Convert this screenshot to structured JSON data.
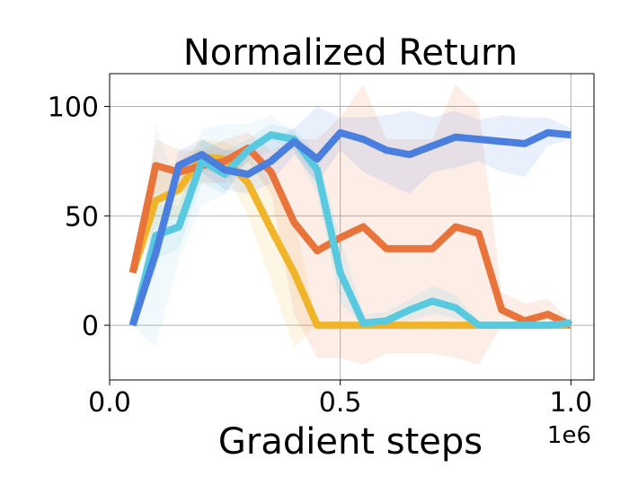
{
  "chart_data": {
    "type": "line",
    "title": "Normalized Return",
    "xlabel": "Gradient steps",
    "ylabel": "",
    "x_offset_label": "1e6",
    "xlim": [
      0.0,
      1.05
    ],
    "ylim": [
      -25,
      115
    ],
    "x_ticks": [
      0.0,
      0.5,
      1.0
    ],
    "x_tick_labels": [
      "0.0",
      "0.5",
      "1.0"
    ],
    "y_ticks": [
      0,
      50,
      100
    ],
    "y_tick_labels": [
      "0",
      "50",
      "100"
    ],
    "grid": true,
    "legend": "none",
    "series": [
      {
        "color": "#8ecae6",
        "x": [
          0.05,
          0.1,
          0.15,
          0.2,
          0.25,
          0.3,
          0.35,
          0.4,
          0.45
        ],
        "values": [
          0,
          41,
          45,
          75,
          70,
          80,
          87,
          85,
          71
        ],
        "band_lower": [
          0,
          -10,
          30,
          55,
          60,
          78,
          85,
          80,
          65
        ],
        "band_upper": [
          0,
          92,
          60,
          90,
          92,
          92,
          96,
          88,
          75
        ]
      },
      {
        "color": "#f0b429",
        "x": [
          0.05,
          0.1,
          0.15,
          0.2,
          0.25,
          0.3,
          0.35,
          0.4,
          0.45,
          0.5,
          0.55,
          0.6,
          0.65,
          0.7,
          0.75,
          0.8,
          0.85,
          0.9,
          0.95,
          1.0
        ],
        "values": [
          24,
          57,
          62,
          77,
          76,
          65,
          44,
          24,
          0,
          0,
          0,
          0,
          0,
          0,
          0,
          0,
          0,
          0,
          0,
          0
        ],
        "band_lower": [
          22,
          45,
          50,
          70,
          70,
          50,
          20,
          -10,
          0,
          0,
          0,
          0,
          0,
          0,
          0,
          0,
          0,
          0,
          0,
          0
        ],
        "band_upper": [
          26,
          70,
          75,
          85,
          84,
          78,
          65,
          50,
          0,
          0,
          0,
          0,
          0,
          0,
          0,
          0,
          0,
          0,
          0,
          0
        ]
      },
      {
        "color": "#e8743b",
        "x": [
          0.05,
          0.1,
          0.15,
          0.2,
          0.25,
          0.3,
          0.35,
          0.4,
          0.45,
          0.5,
          0.55,
          0.6,
          0.65,
          0.7,
          0.75,
          0.8,
          0.85,
          0.9,
          0.95,
          1.0
        ],
        "values": [
          24,
          73,
          70,
          73,
          75,
          81,
          70,
          47,
          34,
          40,
          45,
          35,
          35,
          35,
          45,
          42,
          7,
          2,
          5,
          0
        ],
        "band_lower": [
          22,
          60,
          60,
          65,
          65,
          75,
          60,
          5,
          -15,
          -15,
          -18,
          -13,
          -13,
          -13,
          -15,
          -18,
          0,
          0,
          0,
          0
        ],
        "band_upper": [
          26,
          85,
          80,
          80,
          85,
          88,
          80,
          85,
          85,
          95,
          110,
          85,
          85,
          85,
          110,
          100,
          15,
          10,
          12,
          2
        ]
      },
      {
        "color": "#59c9e0",
        "x": [
          0.05,
          0.1,
          0.15,
          0.2,
          0.25,
          0.3,
          0.35,
          0.4,
          0.45,
          0.5,
          0.55,
          0.6,
          0.65,
          0.7,
          0.75,
          0.8,
          0.85,
          0.9,
          0.95,
          1.0
        ],
        "values": [
          0,
          41,
          45,
          75,
          69,
          80,
          87,
          85,
          71,
          24,
          1,
          2,
          7,
          11,
          8,
          0,
          0,
          0,
          0,
          1
        ],
        "band_lower": [
          0,
          30,
          35,
          65,
          60,
          75,
          80,
          80,
          60,
          10,
          0,
          0,
          2,
          5,
          3,
          0,
          0,
          0,
          0,
          0
        ],
        "band_upper": [
          0,
          55,
          55,
          85,
          80,
          85,
          92,
          90,
          78,
          40,
          5,
          6,
          12,
          18,
          14,
          2,
          1,
          1,
          1,
          3
        ]
      },
      {
        "color": "#4a7fe0",
        "x": [
          0.05,
          0.1,
          0.15,
          0.2,
          0.25,
          0.3,
          0.35,
          0.4,
          0.45,
          0.5,
          0.55,
          0.6,
          0.65,
          0.7,
          0.75,
          0.8,
          0.85,
          0.9,
          0.95,
          1.0
        ],
        "values": [
          0,
          33,
          73,
          78,
          71,
          69,
          75,
          84,
          76,
          88,
          85,
          80,
          78,
          82,
          86,
          85,
          84,
          83,
          88,
          87
        ],
        "band_lower": [
          0,
          25,
          65,
          70,
          62,
          60,
          65,
          78,
          65,
          80,
          70,
          65,
          60,
          70,
          72,
          75,
          70,
          68,
          82,
          85
        ],
        "band_upper": [
          0,
          40,
          80,
          85,
          80,
          80,
          85,
          90,
          100,
          95,
          95,
          96,
          98,
          95,
          98,
          94,
          96,
          95,
          95,
          90
        ]
      }
    ]
  }
}
